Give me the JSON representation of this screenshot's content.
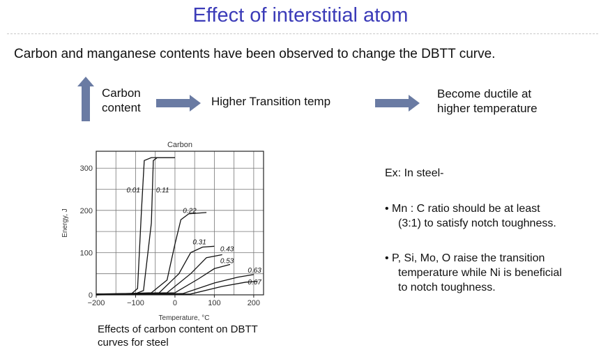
{
  "slide": {
    "title": "Effect of interstitial atom",
    "intro": "Carbon and manganese contents have been observed to change the DBTT curve."
  },
  "flow": {
    "step1_line1": "Carbon",
    "step1_line2": "content",
    "step2": "Higher Transition temp",
    "step3_line1": "Become ductile at",
    "step3_line2": "higher temperature",
    "arrow_color": "#6a7ba3"
  },
  "chart_caption_line1": "Effects of carbon content on DBTT",
  "chart_caption_line2": "curves for steel",
  "example": {
    "heading": "Ex:  In steel-",
    "bullet1_line1": "• Mn : C ratio should be at least",
    "bullet1_line2": "(3:1) to satisfy notch toughness.",
    "bullet2_line1": "• P, Si, Mo, O raise the transition",
    "bullet2_line2": "temperature while Ni is beneficial",
    "bullet2_line3": "to notch toughness."
  },
  "chart_data": {
    "type": "line",
    "title": "Carbon",
    "xlabel": "Temperature, °C",
    "ylabel": "Energy, J",
    "xlim": [
      -200,
      225
    ],
    "ylim": [
      0,
      340
    ],
    "xticks": [
      -200,
      -100,
      0,
      100,
      200
    ],
    "yticks": [
      0,
      100,
      200,
      300
    ],
    "grid": true,
    "series": [
      {
        "name": "0.01",
        "points": [
          [
            -200,
            2
          ],
          [
            -110,
            3
          ],
          [
            -95,
            15
          ],
          [
            -85,
            200
          ],
          [
            -78,
            318
          ],
          [
            -60,
            325
          ],
          [
            0,
            325
          ]
        ]
      },
      {
        "name": "0.11",
        "points": [
          [
            -200,
            2
          ],
          [
            -100,
            3
          ],
          [
            -80,
            10
          ],
          [
            -60,
            170
          ],
          [
            -55,
            318
          ],
          [
            -45,
            325
          ],
          [
            0,
            325
          ]
        ]
      },
      {
        "name": "0.22",
        "points": [
          [
            -200,
            1
          ],
          [
            -60,
            5
          ],
          [
            -20,
            35
          ],
          [
            0,
            120
          ],
          [
            15,
            178
          ],
          [
            35,
            192
          ],
          [
            80,
            195
          ]
        ]
      },
      {
        "name": "0.31",
        "points": [
          [
            -200,
            0
          ],
          [
            -40,
            5
          ],
          [
            10,
            50
          ],
          [
            40,
            100
          ],
          [
            70,
            113
          ],
          [
            100,
            115
          ]
        ]
      },
      {
        "name": "0.43",
        "points": [
          [
            -200,
            0
          ],
          [
            -20,
            5
          ],
          [
            40,
            50
          ],
          [
            80,
            88
          ],
          [
            120,
            95
          ]
        ]
      },
      {
        "name": "0.53",
        "points": [
          [
            -200,
            0
          ],
          [
            0,
            5
          ],
          [
            60,
            38
          ],
          [
            100,
            62
          ],
          [
            140,
            72
          ]
        ]
      },
      {
        "name": "0.63",
        "points": [
          [
            -200,
            0
          ],
          [
            20,
            3
          ],
          [
            100,
            28
          ],
          [
            160,
            42
          ],
          [
            200,
            48
          ]
        ]
      },
      {
        "name": "0.67",
        "points": [
          [
            -200,
            0
          ],
          [
            40,
            2
          ],
          [
            120,
            20
          ],
          [
            180,
            30
          ],
          [
            210,
            32
          ]
        ]
      }
    ]
  }
}
